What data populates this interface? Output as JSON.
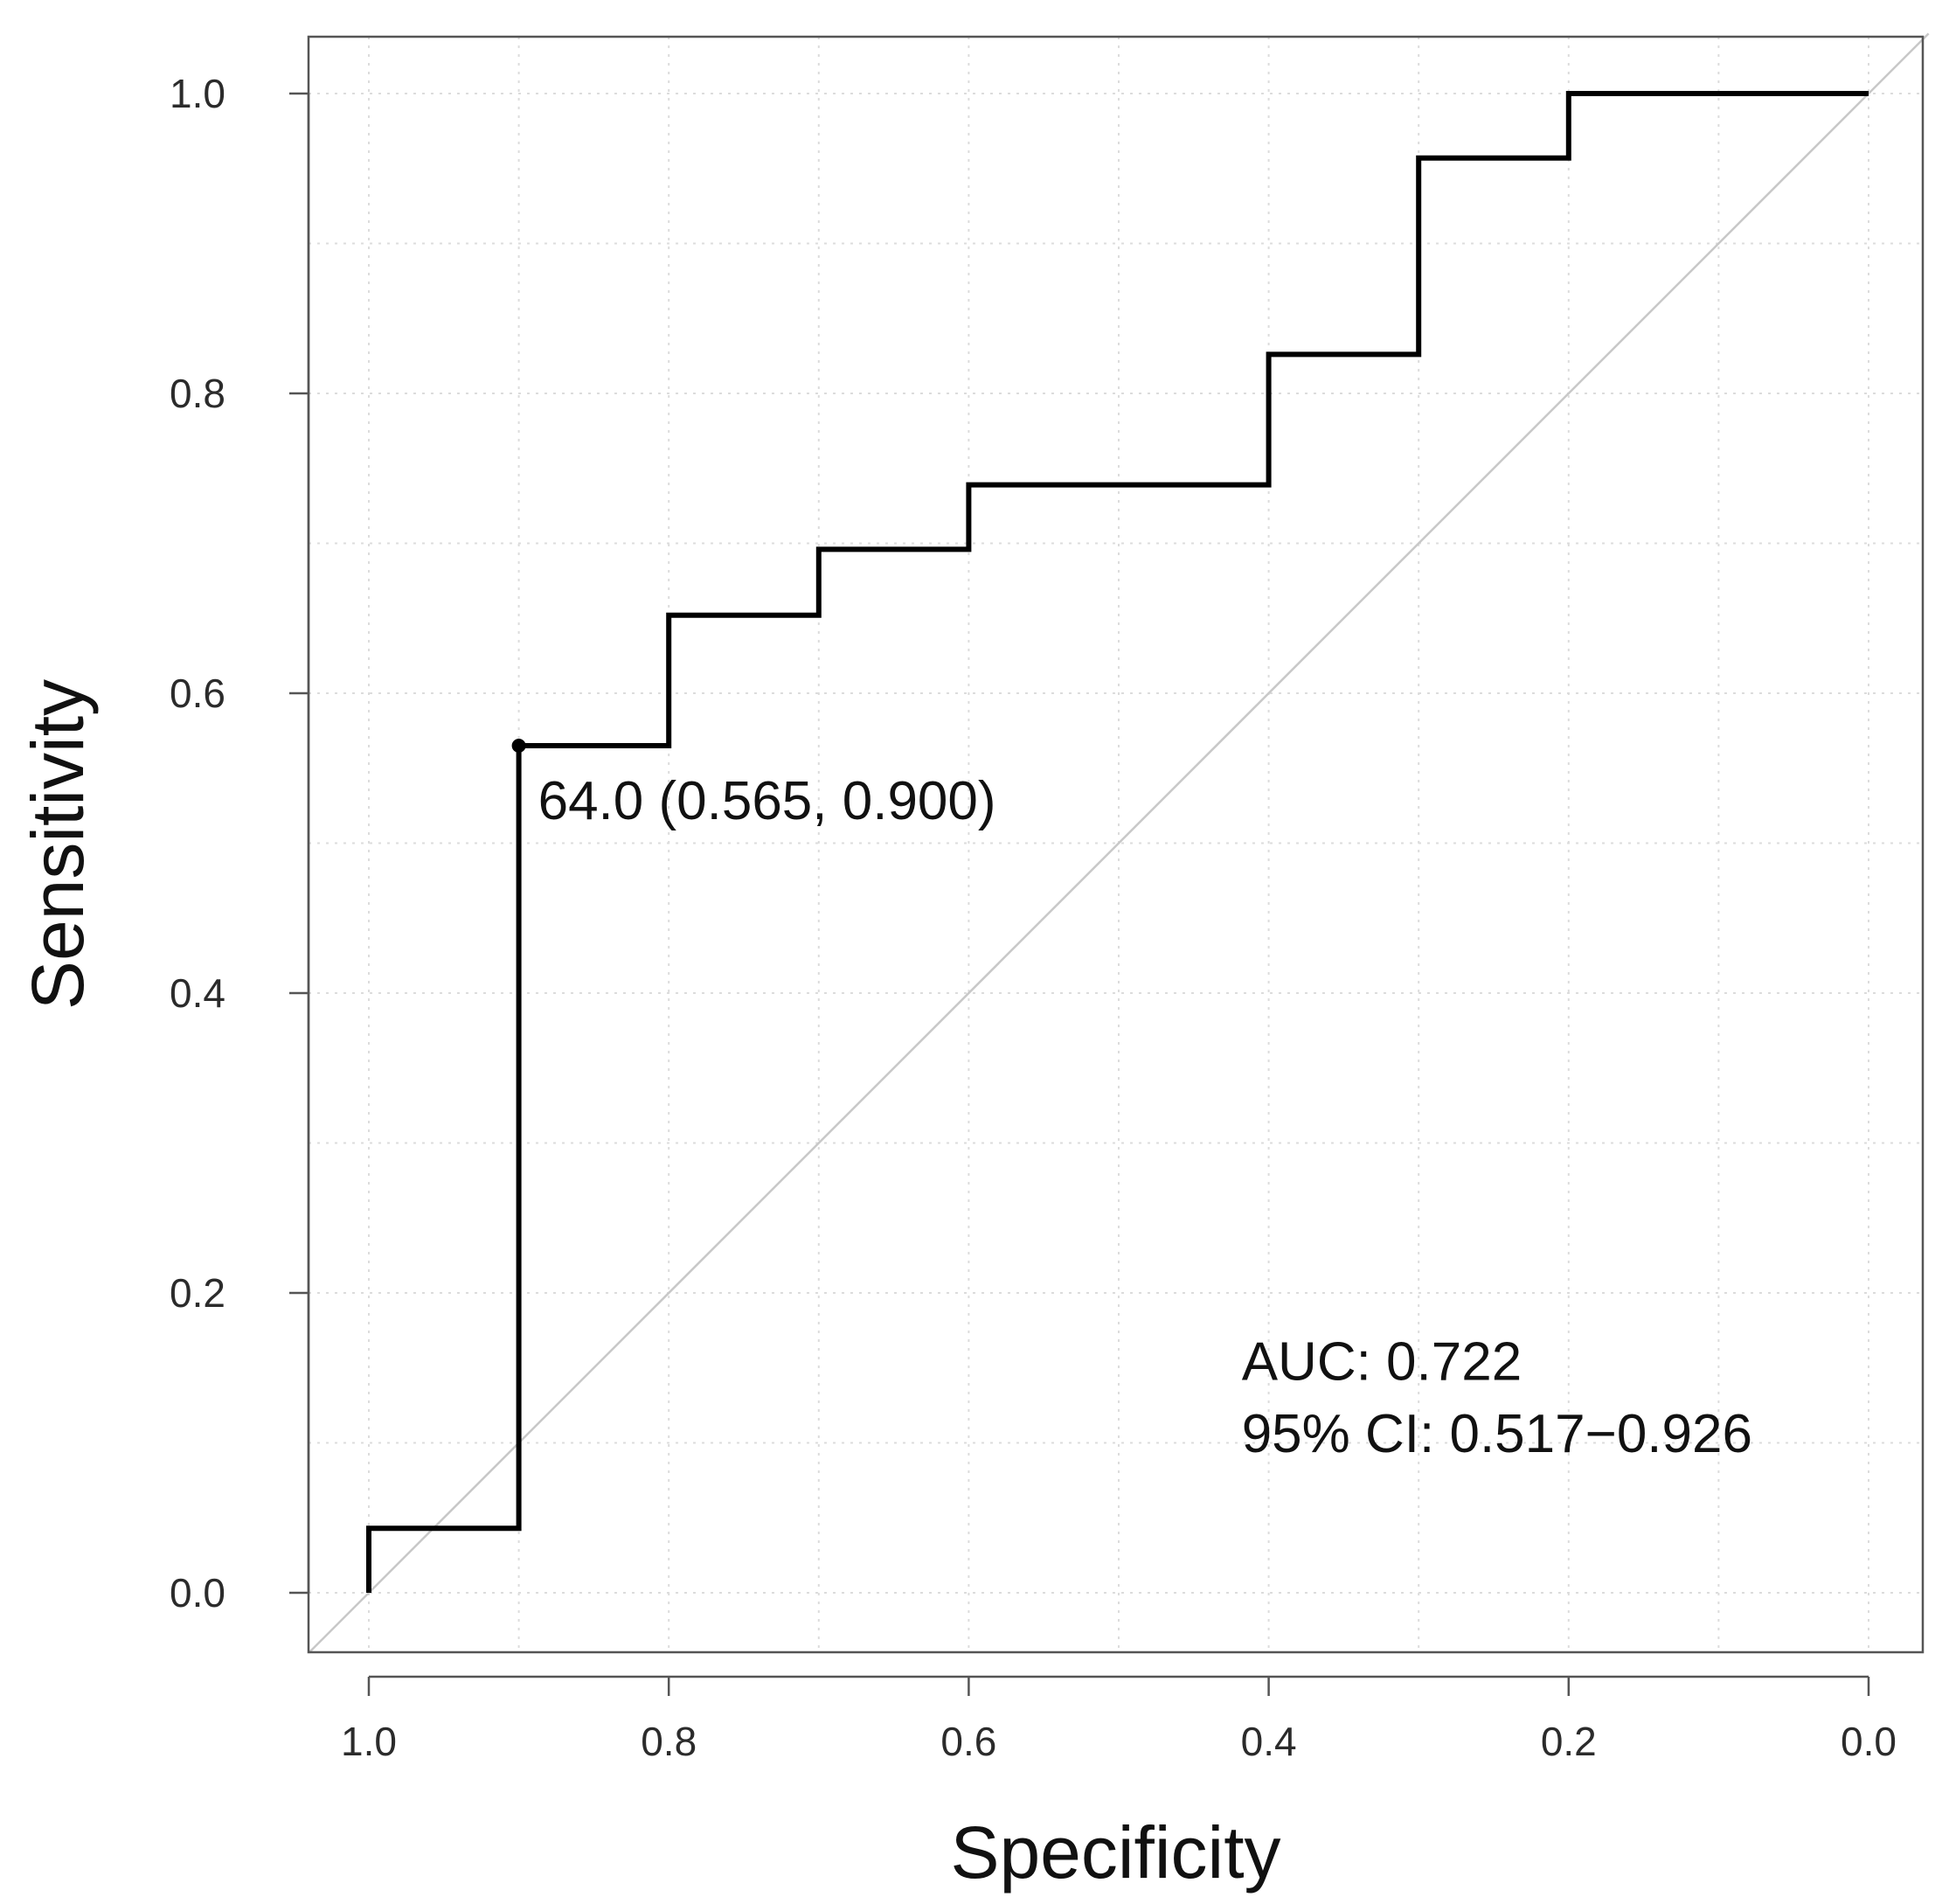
{
  "chart_data": {
    "type": "line",
    "title": "",
    "xlabel": "Specificity",
    "ylabel": "Sensitivity",
    "xlim": [
      1.0,
      0.0
    ],
    "ylim": [
      0.0,
      1.0
    ],
    "x_reversed": true,
    "xticks": [
      1.0,
      0.8,
      0.6,
      0.4,
      0.2,
      0.0
    ],
    "xtick_labels": [
      "1.0",
      "0.8",
      "0.6",
      "0.4",
      "0.2",
      "0.0"
    ],
    "yticks": [
      0.0,
      0.2,
      0.4,
      0.6,
      0.8,
      1.0
    ],
    "ytick_labels": [
      "0.0",
      "0.2",
      "0.4",
      "0.6",
      "0.8",
      "1.0"
    ],
    "grid": true,
    "series": [
      {
        "name": "ROC curve",
        "color": "#000000",
        "points": [
          {
            "specificity": 1.0,
            "sensitivity": 0.0
          },
          {
            "specificity": 1.0,
            "sensitivity": 0.043
          },
          {
            "specificity": 0.9,
            "sensitivity": 0.043
          },
          {
            "specificity": 0.9,
            "sensitivity": 0.565
          },
          {
            "specificity": 0.8,
            "sensitivity": 0.565
          },
          {
            "specificity": 0.8,
            "sensitivity": 0.652
          },
          {
            "specificity": 0.7,
            "sensitivity": 0.652
          },
          {
            "specificity": 0.7,
            "sensitivity": 0.696
          },
          {
            "specificity": 0.6,
            "sensitivity": 0.696
          },
          {
            "specificity": 0.6,
            "sensitivity": 0.739
          },
          {
            "specificity": 0.4,
            "sensitivity": 0.739
          },
          {
            "specificity": 0.4,
            "sensitivity": 0.826
          },
          {
            "specificity": 0.3,
            "sensitivity": 0.826
          },
          {
            "specificity": 0.3,
            "sensitivity": 0.957
          },
          {
            "specificity": 0.2,
            "sensitivity": 0.957
          },
          {
            "specificity": 0.2,
            "sensitivity": 1.0
          },
          {
            "specificity": 0.0,
            "sensitivity": 1.0
          }
        ]
      }
    ],
    "reference_line": {
      "from": {
        "specificity": 1.04,
        "sensitivity": -0.04
      },
      "to": {
        "specificity": -0.04,
        "sensitivity": 1.04
      },
      "color": "#c8c8c8"
    },
    "best_threshold": {
      "specificity": 0.9,
      "sensitivity": 0.565,
      "label": "64.0 (0.565, 0.900)"
    },
    "annotations": [
      {
        "text": "AUC: 0.722",
        "specificity": 0.418,
        "sensitivity": 0.142
      },
      {
        "text": "95% CI: 0.517−0.926",
        "specificity": 0.418,
        "sensitivity": 0.094
      }
    ]
  }
}
